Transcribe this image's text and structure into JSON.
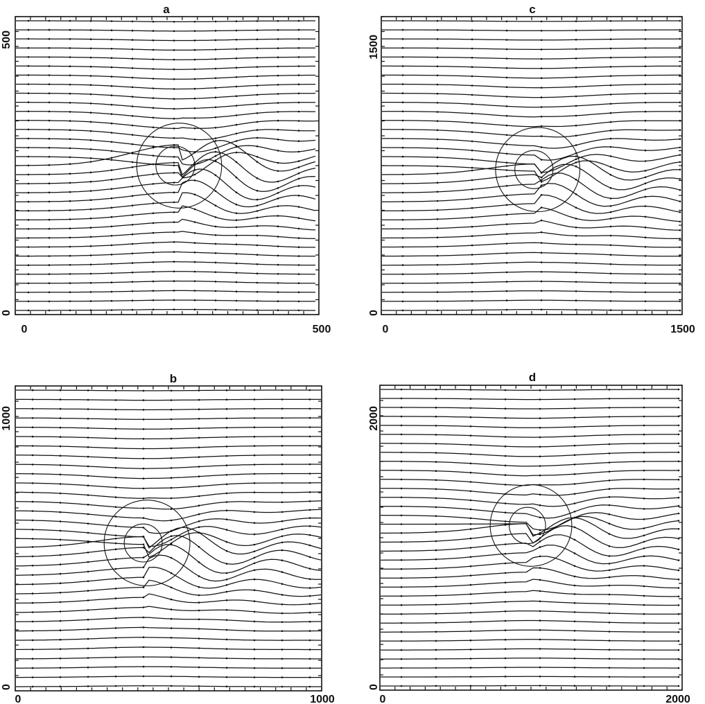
{
  "panels": [
    {
      "id": "a",
      "title": "a",
      "x_tick_labels": [
        "0",
        "500"
      ],
      "y_tick_labels": [
        "0",
        "500"
      ],
      "xlim": [
        0,
        500
      ],
      "ylim": [
        0,
        500
      ],
      "disturbance_center": [
        270,
        250
      ],
      "outer_radius": 70,
      "inner_radius": 32
    },
    {
      "id": "c",
      "title": "c",
      "x_tick_labels": [
        "0",
        "1500"
      ],
      "y_tick_labels": [
        "0",
        "1500"
      ],
      "xlim": [
        0,
        1500
      ],
      "ylim": [
        0,
        1500
      ],
      "disturbance_center": [
        780,
        730
      ],
      "outer_radius": 210,
      "inner_radius": 95
    },
    {
      "id": "b",
      "title": "b",
      "x_tick_labels": [
        "0",
        "1000"
      ],
      "y_tick_labels": [
        "0",
        "1000"
      ],
      "xlim": [
        0,
        1000
      ],
      "ylim": [
        0,
        1000
      ],
      "disturbance_center": [
        430,
        485
      ],
      "outer_radius": 140,
      "inner_radius": 62
    },
    {
      "id": "d",
      "title": "d",
      "x_tick_labels": [
        "0",
        "2000"
      ],
      "y_tick_labels": [
        "0",
        "2000"
      ],
      "xlim": [
        0,
        2000
      ],
      "ylim": [
        0,
        2000
      ],
      "disturbance_center": [
        1000,
        1080
      ],
      "outer_radius": 270,
      "inner_radius": 120
    }
  ]
}
